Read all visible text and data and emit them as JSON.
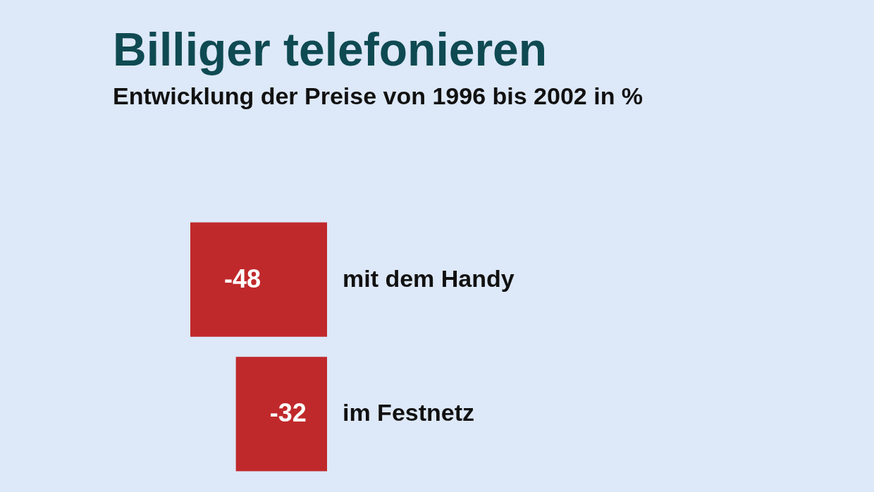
{
  "chart_data": {
    "type": "bar",
    "orientation": "horizontal",
    "title": "Billiger telefonieren",
    "subtitle": "Entwicklung der Preise von 1996 bis 2002 in %",
    "categories": [
      "mit dem Handy",
      "im Festnetz"
    ],
    "values": [
      -48,
      -32
    ],
    "color": "#c0292b",
    "data_labels": true
  }
}
